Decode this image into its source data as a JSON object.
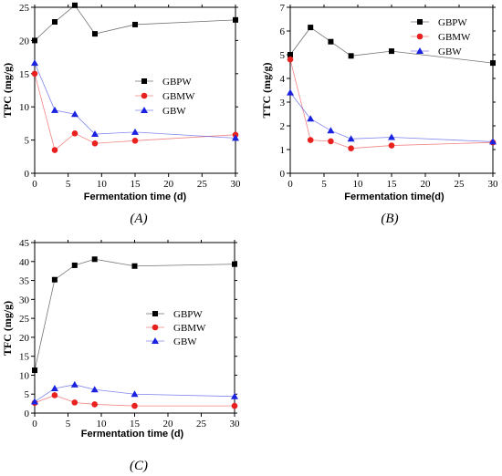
{
  "colors": {
    "GBPW": "#000000",
    "GBMW": "#e8201e",
    "GBW": "#1a22e0"
  },
  "chart_data": [
    {
      "type": "line",
      "panel_label": "(A)",
      "xlabel": "Fermentation time (d)",
      "ylabel": "TPC (mg/g)",
      "xlim": [
        0,
        30
      ],
      "ylim": [
        0,
        25
      ],
      "xticks": [
        "0",
        "5",
        "10",
        "15",
        "20",
        "25",
        "30"
      ],
      "yticks": [
        "0",
        "5",
        "10",
        "15",
        "20",
        "25"
      ],
      "legend_position": "center-right",
      "x": [
        0,
        3,
        6,
        9,
        15,
        30
      ],
      "series": [
        {
          "name": "GBPW",
          "values": [
            20.0,
            22.8,
            25.3,
            21.0,
            22.4,
            23.1
          ]
        },
        {
          "name": "GBMW",
          "values": [
            15.0,
            3.5,
            6.0,
            4.5,
            4.9,
            5.8
          ]
        },
        {
          "name": "GBW",
          "values": [
            16.6,
            9.5,
            8.9,
            5.9,
            6.2,
            5.3
          ]
        }
      ]
    },
    {
      "type": "line",
      "panel_label": "(B)",
      "xlabel": "Fermentation time(d)",
      "ylabel": "TTC (mg/g)",
      "xlim": [
        0,
        30
      ],
      "ylim": [
        0,
        7
      ],
      "xticks": [
        "0",
        "5",
        "10",
        "15",
        "20",
        "25",
        "30"
      ],
      "yticks": [
        "0",
        "1",
        "2",
        "3",
        "4",
        "5",
        "6",
        "7"
      ],
      "legend_position": "top-right",
      "x": [
        0,
        3,
        6,
        9,
        15,
        30
      ],
      "series": [
        {
          "name": "GBPW",
          "values": [
            5.0,
            6.15,
            5.55,
            4.95,
            5.15,
            4.65
          ]
        },
        {
          "name": "GBMW",
          "values": [
            4.8,
            1.4,
            1.35,
            1.05,
            1.17,
            1.3
          ]
        },
        {
          "name": "GBW",
          "values": [
            3.4,
            2.3,
            1.8,
            1.45,
            1.52,
            1.33
          ]
        }
      ]
    },
    {
      "type": "line",
      "panel_label": "(C)",
      "xlabel": "Fermentation time (d)",
      "ylabel": "TFC (mg/g)",
      "xlim": [
        0,
        30
      ],
      "ylim": [
        0,
        45
      ],
      "xticks": [
        "0",
        "5",
        "10",
        "15",
        "20",
        "25",
        "30"
      ],
      "yticks": [
        "0",
        "5",
        "10",
        "15",
        "20",
        "25",
        "30",
        "35",
        "40",
        "45"
      ],
      "legend_position": "center-right",
      "x": [
        0,
        3,
        6,
        9,
        15,
        30
      ],
      "series": [
        {
          "name": "GBPW",
          "values": [
            11.3,
            35.2,
            39.0,
            40.6,
            38.8,
            39.3
          ]
        },
        {
          "name": "GBMW",
          "values": [
            2.7,
            4.7,
            2.8,
            2.3,
            1.9,
            1.9
          ]
        },
        {
          "name": "GBW",
          "values": [
            3.0,
            6.5,
            7.5,
            6.2,
            5.0,
            4.4
          ]
        }
      ]
    }
  ]
}
